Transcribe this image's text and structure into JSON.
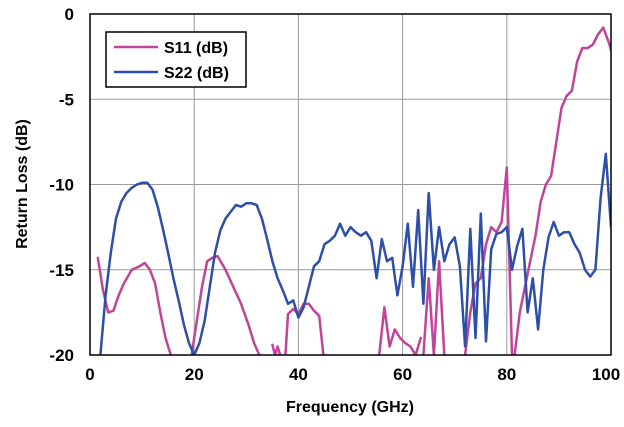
{
  "chart_data": {
    "type": "line",
    "title": "",
    "xlabel": "Frequency (GHz)",
    "ylabel": "Return Loss (dB)",
    "xlim": [
      0,
      100
    ],
    "ylim": [
      -20,
      0
    ],
    "xticks": [
      0,
      20,
      40,
      60,
      80,
      100
    ],
    "xtick_labels": [
      "0",
      "20",
      "40",
      "60",
      "80",
      "100"
    ],
    "yticks": [
      0,
      -5,
      -10,
      -15,
      -20
    ],
    "ytick_labels": [
      "0",
      "-5",
      "-10",
      "-15",
      "-20"
    ],
    "grid": true,
    "legend_position": "top-left",
    "series": [
      {
        "name": "S11 (dB)",
        "color": "#c0449a",
        "segments": [
          {
            "x": [
              1.5,
              2.5,
              3.5,
              4.5,
              5.5,
              6.5,
              8,
              9.5,
              10.5,
              11.5,
              12.5,
              13.5,
              14.5,
              15.5
            ],
            "y": [
              -14.3,
              -16.2,
              -17.5,
              -17.4,
              -16.5,
              -15.8,
              -15,
              -14.8,
              -14.6,
              -15.0,
              -15.8,
              -17.5,
              -19,
              -20
            ]
          },
          {
            "x": [
              19.5,
              20.5,
              21.5,
              22.5,
              23.5,
              24.5,
              26,
              27.5,
              29,
              30.5,
              31.5,
              32.5
            ],
            "y": [
              -20,
              -18,
              -16,
              -14.5,
              -14.3,
              -14.2,
              -15,
              -16,
              -17,
              -18.3,
              -19.3,
              -20
            ]
          },
          {
            "x": [
              35,
              35.5,
              36,
              36.5
            ],
            "y": [
              -19.4,
              -20,
              -19.5,
              -20
            ]
          },
          {
            "x": [
              37.5,
              38,
              39,
              40,
              41,
              42,
              43,
              44,
              44.8
            ],
            "y": [
              -20,
              -17.6,
              -17.3,
              -17.6,
              -17.0,
              -17.0,
              -17.4,
              -17.7,
              -20
            ]
          },
          {
            "x": [
              55.5,
              56.5,
              57.5,
              58.5,
              59.5,
              60.5,
              61.5,
              62.5,
              63.5
            ],
            "y": [
              -20,
              -17.2,
              -19.5,
              -18.5,
              -19,
              -19.3,
              -19.5,
              -20,
              -19
            ]
          },
          {
            "x": [
              64,
              65,
              66,
              67,
              68
            ],
            "y": [
              -20,
              -15.5,
              -20,
              -14.5,
              -20
            ]
          },
          {
            "x": [
              72,
              73,
              74,
              75,
              76,
              77,
              78,
              79,
              80,
              81,
              81.5,
              82.5,
              83.5,
              84.5,
              85.5,
              86.5,
              87.5,
              88.5,
              89.5,
              90.5,
              91.5,
              92.5,
              93.5,
              94.5,
              95.5,
              96.5,
              97.5,
              98.5,
              99.5,
              100.5
            ],
            "y": [
              -20,
              -17.5,
              -15.8,
              -15.5,
              -13.5,
              -12.5,
              -12.8,
              -12.2,
              -9,
              -20,
              -20,
              -17.5,
              -16,
              -14.5,
              -13,
              -11,
              -10,
              -9.5,
              -7.5,
              -5.5,
              -4.8,
              -4.5,
              -2.8,
              -2.0,
              -2.0,
              -1.8,
              -1.2,
              -0.8,
              -1.6,
              -2.6
            ]
          }
        ]
      },
      {
        "name": "S22 (dB)",
        "color": "#2d4fa8",
        "segments": [
          {
            "x": [
              2,
              3,
              4,
              5,
              6,
              7,
              8,
              9,
              10,
              11,
              12,
              13,
              14,
              15,
              16,
              17,
              18,
              19,
              20,
              21,
              22,
              23,
              24,
              25,
              26,
              27,
              28,
              29,
              30,
              31,
              32,
              33,
              34,
              35,
              36,
              37,
              38,
              39,
              40,
              41,
              42,
              43,
              44,
              45,
              46,
              47,
              48,
              49,
              50,
              51,
              52,
              53,
              54,
              55,
              56,
              57,
              58,
              59,
              60,
              61,
              62,
              63,
              64,
              65,
              66,
              67,
              68,
              69,
              70,
              71,
              72,
              73,
              74,
              75,
              76,
              77,
              78,
              79,
              80,
              81,
              82,
              83,
              84,
              85,
              86,
              87,
              88,
              89,
              90,
              91,
              92,
              93,
              94,
              95,
              96,
              97,
              98,
              99,
              100,
              101
            ],
            "y": [
              -20,
              -16.5,
              -14,
              -12,
              -11,
              -10.5,
              -10.2,
              -10,
              -9.9,
              -9.9,
              -10.3,
              -11.3,
              -12.6,
              -14,
              -15.5,
              -16.8,
              -18.2,
              -19.3,
              -20,
              -19.3,
              -18,
              -16,
              -14,
              -12.7,
              -12,
              -11.6,
              -11.2,
              -11.3,
              -11.1,
              -11.1,
              -11.2,
              -12,
              -13.2,
              -14.5,
              -15.5,
              -16.2,
              -17,
              -16.8,
              -17.8,
              -17.2,
              -16,
              -14.8,
              -14.5,
              -13.5,
              -13.3,
              -13,
              -12.3,
              -13,
              -12.5,
              -12.8,
              -13,
              -12.8,
              -13.3,
              -15.5,
              -13.2,
              -14.5,
              -14.3,
              -16.5,
              -14.8,
              -12.3,
              -16,
              -11.5,
              -17,
              -10.5,
              -15,
              -12.5,
              -14.5,
              -13.5,
              -13.1,
              -14.8,
              -19.5,
              -12.6,
              -19,
              -11.7,
              -19.2,
              -13.8,
              -12.9,
              -12.8,
              -12.5,
              -15,
              -13.6,
              -12.6,
              -17.5,
              -15.5,
              -18.5,
              -15,
              -13.1,
              -12.2,
              -13,
              -12.8,
              -12.8,
              -13.5,
              -14,
              -15,
              -15.4,
              -15,
              -10.8,
              -8.2,
              -12.5,
              -11.6
            ]
          }
        ]
      }
    ]
  }
}
